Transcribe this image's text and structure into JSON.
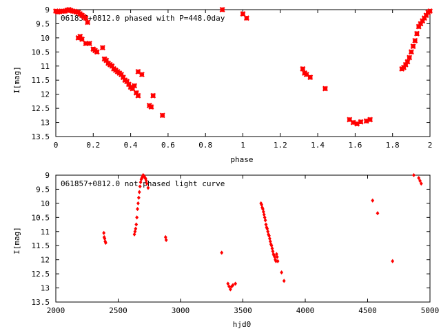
{
  "chart_data": [
    {
      "type": "scatter",
      "title": "061857+0812.0 phased with P=448.0day",
      "xlabel": "phase",
      "ylabel": "I[mag]",
      "xlim": [
        0,
        2
      ],
      "ylim": [
        9,
        13.5
      ],
      "y_inverted": true,
      "grid": false,
      "xticks": [
        "0",
        "0.2",
        "0.4",
        "0.6",
        "0.8",
        "1",
        "1.2",
        "1.4",
        "1.6",
        "1.8",
        "2"
      ],
      "yticks": [
        "9",
        "9.5",
        "10",
        "10.5",
        "11",
        "11.5",
        "12",
        "12.5",
        "13",
        "13.5"
      ],
      "marker_color": "#ff0000",
      "x": [
        0.0,
        0.01,
        0.02,
        0.03,
        0.04,
        0.05,
        0.06,
        0.07,
        0.08,
        0.09,
        0.1,
        0.11,
        0.12,
        0.13,
        0.14,
        0.15,
        0.16,
        0.17,
        0.12,
        0.13,
        0.14,
        0.16,
        0.18,
        0.2,
        0.21,
        0.22,
        0.25,
        0.26,
        0.27,
        0.28,
        0.29,
        0.3,
        0.31,
        0.32,
        0.33,
        0.34,
        0.35,
        0.36,
        0.37,
        0.38,
        0.39,
        0.4,
        0.41,
        0.42,
        0.43,
        0.44,
        0.44,
        0.46,
        0.5,
        0.51,
        0.52,
        0.57,
        0.89,
        1.0,
        1.02,
        1.32,
        1.33,
        1.34,
        1.36,
        1.44,
        1.57,
        1.59,
        1.61,
        1.63,
        1.66,
        1.68,
        1.85,
        1.86,
        1.87,
        1.88,
        1.89,
        1.9,
        1.91,
        1.92,
        1.93,
        1.94,
        1.95,
        1.96,
        1.97,
        1.98,
        1.99,
        2.0
      ],
      "y": [
        9.05,
        9.08,
        9.07,
        9.05,
        9.06,
        9.05,
        9.02,
        9.0,
        9.03,
        9.05,
        9.06,
        9.08,
        9.1,
        9.15,
        9.2,
        9.25,
        9.3,
        9.45,
        10.0,
        9.95,
        10.05,
        10.2,
        10.2,
        10.4,
        10.45,
        10.5,
        10.35,
        10.75,
        10.8,
        10.9,
        10.95,
        11.0,
        11.1,
        11.15,
        11.2,
        11.25,
        11.3,
        11.4,
        11.5,
        11.55,
        11.65,
        11.75,
        11.8,
        11.7,
        11.95,
        12.05,
        11.2,
        11.3,
        12.4,
        12.45,
        12.05,
        12.75,
        9.0,
        9.15,
        9.3,
        11.1,
        11.25,
        11.3,
        11.4,
        11.8,
        12.9,
        13.0,
        13.05,
        12.98,
        12.95,
        12.9,
        11.1,
        11.05,
        10.95,
        10.85,
        10.7,
        10.5,
        10.3,
        10.1,
        9.85,
        9.6,
        9.5,
        9.4,
        9.3,
        9.2,
        9.1,
        9.05
      ]
    },
    {
      "type": "scatter",
      "title": "061857+0812.0 not phased light curve",
      "xlabel": "hjd0",
      "ylabel": "I[mag]",
      "xlim": [
        2000,
        5000
      ],
      "ylim": [
        9,
        13.5
      ],
      "y_inverted": true,
      "grid": false,
      "xticks": [
        "2000",
        "2500",
        "3000",
        "3500",
        "4000",
        "4500",
        "5000"
      ],
      "yticks": [
        "9",
        "9.5",
        "10",
        "10.5",
        "11",
        "11.5",
        "12",
        "12.5",
        "13",
        "13.5"
      ],
      "marker_color": "#ff0000",
      "x": [
        2385,
        2388,
        2392,
        2396,
        2400,
        2630,
        2635,
        2640,
        2645,
        2650,
        2655,
        2660,
        2665,
        2670,
        2675,
        2680,
        2685,
        2690,
        2695,
        2700,
        2705,
        2710,
        2715,
        2720,
        2725,
        2730,
        2740,
        2880,
        2885,
        3330,
        3380,
        3390,
        3400,
        3410,
        3420,
        3440,
        3645,
        3650,
        3655,
        3660,
        3665,
        3670,
        3675,
        3680,
        3685,
        3690,
        3695,
        3700,
        3705,
        3710,
        3715,
        3720,
        3725,
        3730,
        3735,
        3740,
        3745,
        3750,
        3755,
        3760,
        3765,
        3770,
        3775,
        3780,
        3810,
        3830,
        4540,
        4580,
        4700,
        4870,
        4910,
        4920,
        4930
      ],
      "y": [
        11.05,
        11.2,
        11.25,
        11.35,
        11.4,
        11.1,
        11.0,
        10.9,
        10.75,
        10.5,
        10.2,
        10.0,
        9.8,
        9.6,
        9.4,
        9.25,
        9.15,
        9.1,
        9.05,
        9.0,
        9.02,
        9.05,
        9.1,
        9.12,
        9.2,
        9.3,
        9.45,
        11.2,
        11.3,
        11.75,
        12.85,
        12.95,
        13.05,
        12.95,
        12.9,
        12.85,
        10.0,
        10.05,
        10.15,
        10.2,
        10.3,
        10.4,
        10.5,
        10.6,
        10.75,
        10.85,
        10.9,
        11.0,
        11.1,
        11.15,
        11.25,
        11.35,
        11.45,
        11.5,
        11.6,
        11.7,
        11.8,
        11.85,
        11.9,
        12.0,
        12.05,
        11.8,
        11.9,
        12.05,
        12.45,
        12.75,
        9.9,
        10.35,
        12.05,
        9.0,
        9.1,
        9.2,
        9.3
      ]
    }
  ]
}
